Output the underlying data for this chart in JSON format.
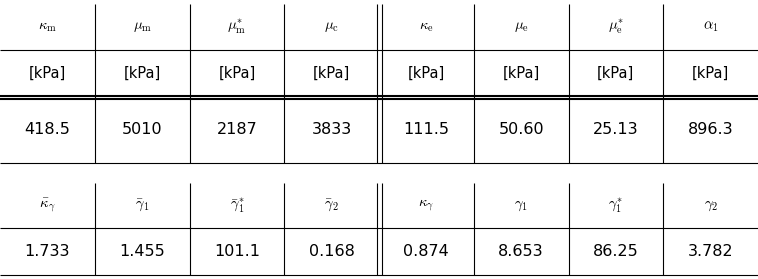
{
  "table1_headers": [
    "$\\kappa_{\\mathrm{m}}$",
    "$\\mu_{\\mathrm{m}}$",
    "$\\mu_{\\mathrm{m}}^{*}$",
    "$\\mu_{\\mathrm{c}}$",
    "$\\kappa_{\\mathrm{e}}$",
    "$\\mu_{\\mathrm{e}}$",
    "$\\mu_{\\mathrm{e}}^{*}$",
    "$\\alpha_1$"
  ],
  "table1_units": [
    "[kPa]",
    "[kPa]",
    "[kPa]",
    "[kPa]",
    "[kPa]",
    "[kPa]",
    "[kPa]",
    "[kPa]"
  ],
  "table1_values": [
    "418.5",
    "5010",
    "2187",
    "3833",
    "111.5",
    "50.60",
    "25.13",
    "896.3"
  ],
  "table2_headers": [
    "$\\bar{\\kappa}_{\\gamma}$",
    "$\\bar{\\gamma}_1$",
    "$\\bar{\\gamma}_1^{*}$",
    "$\\bar{\\gamma}_2$",
    "$\\kappa_{\\gamma}$",
    "$\\gamma_1$",
    "$\\gamma_1^{*}$",
    "$\\gamma_2$"
  ],
  "table2_values": [
    "1.733",
    "1.455",
    "101.1",
    "0.168",
    "0.874",
    "8.653",
    "86.25",
    "3.782"
  ],
  "double_line_after_col": [
    4,
    8
  ],
  "bg_color": "white",
  "text_color": "black",
  "line_color": "black",
  "header_fontsize": 10.5,
  "value_fontsize": 11.5,
  "unit_fontsize": 10.5
}
